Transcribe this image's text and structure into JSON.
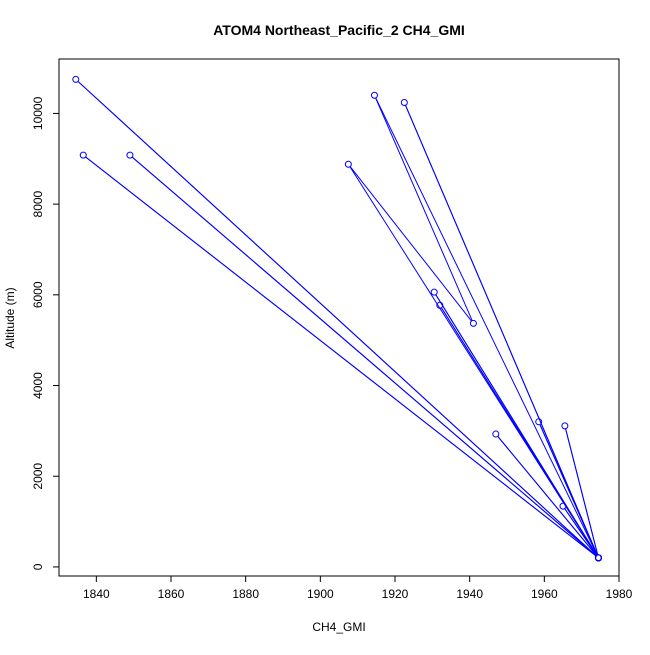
{
  "chart_data": {
    "type": "scatter",
    "title": "ATOM4 Northeast_Pacific_2 CH4_GMI",
    "xlabel": "CH4_GMI",
    "ylabel": "Altitude (m)",
    "xlim": [
      1830,
      1980
    ],
    "ylim": [
      -200,
      11200
    ],
    "x_ticks": [
      1840,
      1860,
      1880,
      1900,
      1920,
      1940,
      1960,
      1980
    ],
    "x_tick_labels": [
      "1840",
      "1860",
      "1880",
      "1900",
      "1920",
      "1940",
      "1960",
      "1980"
    ],
    "y_ticks": [
      0,
      2000,
      4000,
      6000,
      8000,
      10000
    ],
    "y_tick_labels": [
      "0",
      "2000",
      "4000",
      "6000",
      "8000",
      "10000"
    ],
    "grid": false,
    "color": "#0000ff",
    "points": [
      {
        "x": 1974.5,
        "y": 200
      },
      {
        "x": 1834.5,
        "y": 10750
      },
      {
        "x": 1974.5,
        "y": 200
      },
      {
        "x": 1836.5,
        "y": 9080
      },
      {
        "x": 1974.5,
        "y": 200
      },
      {
        "x": 1849.0,
        "y": 9080
      },
      {
        "x": 1974.5,
        "y": 200
      },
      {
        "x": 1965.5,
        "y": 3110
      },
      {
        "x": 1974.5,
        "y": 200
      },
      {
        "x": 1932.0,
        "y": 5770
      },
      {
        "x": 1974.5,
        "y": 200
      },
      {
        "x": 1914.5,
        "y": 10400
      },
      {
        "x": 1941.0,
        "y": 5370
      },
      {
        "x": 1907.5,
        "y": 8880
      },
      {
        "x": 1974.5,
        "y": 200
      },
      {
        "x": 1930.5,
        "y": 6060
      },
      {
        "x": 1974.5,
        "y": 200
      },
      {
        "x": 1922.5,
        "y": 10240
      },
      {
        "x": 1974.5,
        "y": 200
      },
      {
        "x": 1958.5,
        "y": 3200
      },
      {
        "x": 1974.5,
        "y": 200
      },
      {
        "x": 1947.0,
        "y": 2930
      },
      {
        "x": 1974.5,
        "y": 200
      },
      {
        "x": 1965.0,
        "y": 1340
      },
      {
        "x": 1974.5,
        "y": 200
      }
    ]
  }
}
